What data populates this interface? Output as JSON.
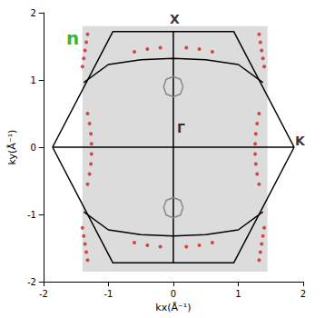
{
  "chart_data": {
    "type": "line",
    "xlabel": "kx(Å⁻¹)",
    "ylabel": "ky(Å⁻¹)",
    "xlim": [
      -2,
      2
    ],
    "xticks": [
      -2,
      -1,
      0,
      1,
      2
    ],
    "ylim": [
      -2,
      2
    ],
    "yticks": [
      -2,
      -1,
      0,
      1,
      2
    ],
    "grid": false,
    "map_extent": {
      "x": [
        -1.4,
        1.45
      ],
      "y": [
        -1.85,
        1.8
      ]
    },
    "map_color": "#dcdcdc",
    "series": [
      {
        "type": "line",
        "color": "#000000",
        "line_style": "solid",
        "marker": "none",
        "points": [
          [
            -1.86,
            0
          ],
          [
            -0.93,
            1.72
          ],
          [
            0.93,
            1.72
          ],
          [
            1.86,
            0
          ],
          [
            0.93,
            -1.72
          ],
          [
            -0.93,
            -1.72
          ],
          [
            -1.86,
            0
          ]
        ]
      },
      {
        "type": "line",
        "color": "#000000",
        "line_style": "solid",
        "marker": "none",
        "points": [
          [
            -1.86,
            0
          ],
          [
            1.86,
            0
          ]
        ]
      },
      {
        "type": "line",
        "color": "#000000",
        "line_style": "solid",
        "marker": "none",
        "points": [
          [
            0,
            -1.72
          ],
          [
            0,
            1.72
          ]
        ]
      },
      {
        "type": "line",
        "color": "#000000",
        "line_style": "solid",
        "marker": "none",
        "points": [
          [
            -1.38,
            0.96
          ],
          [
            -1.0,
            1.23
          ],
          [
            -0.5,
            1.3
          ],
          [
            0,
            1.32
          ],
          [
            0.5,
            1.3
          ],
          [
            1.0,
            1.23
          ],
          [
            1.38,
            0.96
          ]
        ]
      },
      {
        "type": "line",
        "color": "#000000",
        "line_style": "solid",
        "marker": "none",
        "points": [
          [
            -1.38,
            -0.96
          ],
          [
            -1.0,
            -1.23
          ],
          [
            -0.5,
            -1.3
          ],
          [
            0,
            -1.32
          ],
          [
            0.5,
            -1.3
          ],
          [
            1.0,
            -1.23
          ],
          [
            1.38,
            -0.96
          ]
        ]
      },
      {
        "type": "line",
        "color": "#888888",
        "line_style": "solid",
        "marker": "none",
        "points": [
          [
            0.15,
            0.9
          ],
          [
            0.11,
            1.01
          ],
          [
            0,
            1.05
          ],
          [
            -0.11,
            1.01
          ],
          [
            -0.15,
            0.9
          ],
          [
            -0.11,
            0.79
          ],
          [
            0,
            0.75
          ],
          [
            0.11,
            0.79
          ],
          [
            0.15,
            0.9
          ]
        ]
      },
      {
        "type": "line",
        "color": "#888888",
        "line_style": "solid",
        "marker": "none",
        "points": [
          [
            0.15,
            -0.9
          ],
          [
            0.11,
            -0.79
          ],
          [
            0,
            -0.75
          ],
          [
            -0.11,
            -0.79
          ],
          [
            -0.15,
            -0.9
          ],
          [
            -0.11,
            -1.01
          ],
          [
            0,
            -1.05
          ],
          [
            0.11,
            -1.01
          ],
          [
            0.15,
            -0.9
          ]
        ]
      },
      {
        "type": "scatter",
        "color": "#cc2222",
        "marker": "circle",
        "points": [
          [
            -1.32,
            -0.55
          ],
          [
            -1.29,
            -0.4
          ],
          [
            -1.27,
            -0.25
          ],
          [
            -1.26,
            -0.1
          ],
          [
            -1.26,
            0.05
          ],
          [
            -1.27,
            0.2
          ],
          [
            -1.29,
            0.35
          ],
          [
            -1.32,
            0.5
          ],
          [
            1.32,
            -0.55
          ],
          [
            1.29,
            -0.4
          ],
          [
            1.27,
            -0.25
          ],
          [
            1.26,
            -0.1
          ],
          [
            1.26,
            0.05
          ],
          [
            1.27,
            0.2
          ],
          [
            1.29,
            0.35
          ],
          [
            1.32,
            0.5
          ],
          [
            -1.4,
            1.2
          ],
          [
            -1.38,
            1.32
          ],
          [
            -1.36,
            1.44
          ],
          [
            -1.34,
            1.56
          ],
          [
            -1.32,
            1.68
          ],
          [
            1.4,
            1.2
          ],
          [
            1.38,
            1.32
          ],
          [
            1.36,
            1.44
          ],
          [
            1.34,
            1.56
          ],
          [
            1.32,
            1.68
          ],
          [
            -1.4,
            -1.2
          ],
          [
            -1.38,
            -1.32
          ],
          [
            -1.36,
            -1.44
          ],
          [
            -1.34,
            -1.56
          ],
          [
            -1.32,
            -1.68
          ],
          [
            1.4,
            -1.2
          ],
          [
            1.38,
            -1.32
          ],
          [
            1.36,
            -1.44
          ],
          [
            1.34,
            -1.56
          ],
          [
            1.32,
            -1.68
          ],
          [
            -0.6,
            1.42
          ],
          [
            -0.4,
            1.46
          ],
          [
            -0.2,
            1.48
          ],
          [
            0.2,
            1.48
          ],
          [
            0.4,
            1.46
          ],
          [
            0.6,
            1.42
          ],
          [
            -0.6,
            -1.42
          ],
          [
            -0.4,
            -1.46
          ],
          [
            -0.2,
            -1.48
          ],
          [
            0.2,
            -1.48
          ],
          [
            0.4,
            -1.46
          ],
          [
            0.6,
            -1.42
          ]
        ]
      }
    ],
    "annotations": [
      {
        "text": "Γ",
        "x": 0.12,
        "y": 0.28,
        "color": "#000000"
      },
      {
        "text": "X",
        "x": 0.02,
        "y": 1.9,
        "color": "#000000"
      },
      {
        "text": "K",
        "x": 1.95,
        "y": 0.1,
        "color": "#000000"
      },
      {
        "text": "n",
        "x": -1.55,
        "y": 1.62,
        "color": "#00a000"
      }
    ]
  }
}
